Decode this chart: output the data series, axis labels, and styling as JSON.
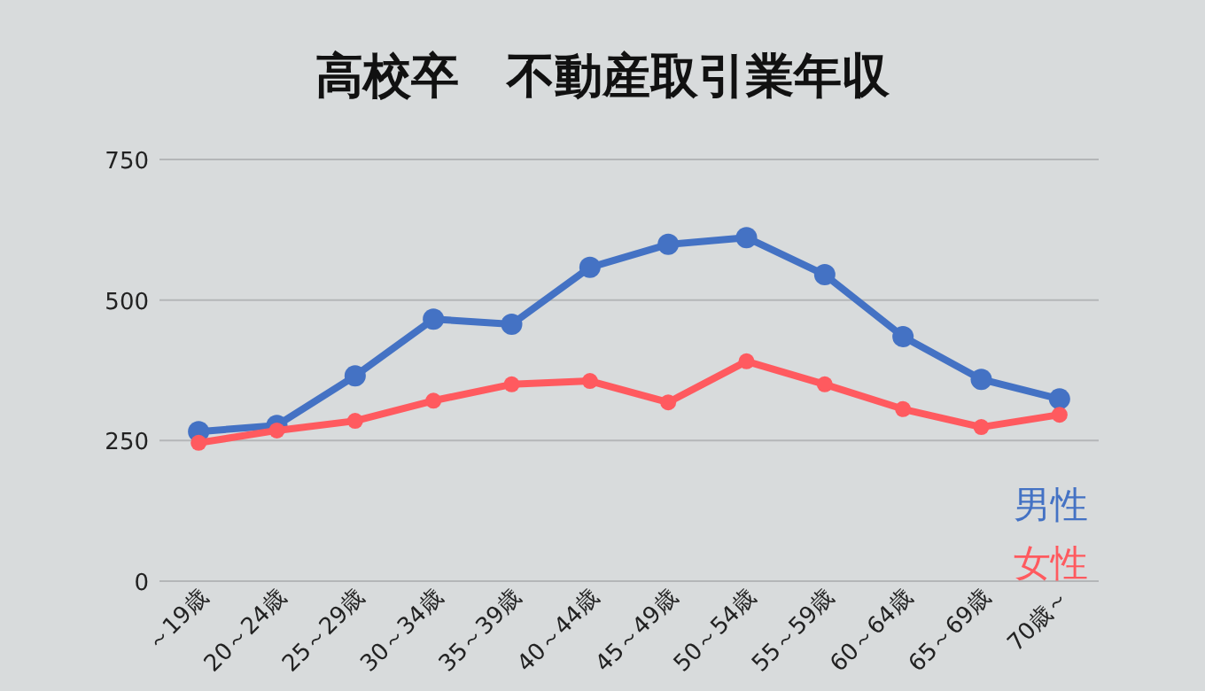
{
  "chart_data": {
    "type": "line",
    "title": "高校卒　不動産取引業年収",
    "categories": [
      "～19歳",
      "20～24歳",
      "25～29歳",
      "30～34歳",
      "35～39歳",
      "40～44歳",
      "45～49歳",
      "50～54歳",
      "55～59歳",
      "60～64歳",
      "65～69歳",
      "70歳～"
    ],
    "series": [
      {
        "name": "男性",
        "color": "#4472c4",
        "values": [
          266,
          277,
          365,
          466,
          457,
          558,
          599,
          611,
          545,
          435,
          359,
          324
        ]
      },
      {
        "name": "女性",
        "color": "#ff5a5f",
        "values": [
          246,
          268,
          285,
          321,
          350,
          356,
          318,
          391,
          350,
          306,
          274,
          296
        ]
      }
    ],
    "ylim": [
      0,
      750
    ],
    "yticks": [
      0,
      250,
      500,
      750
    ],
    "grid": "y",
    "marker": "circle",
    "legend": "bottom right"
  }
}
